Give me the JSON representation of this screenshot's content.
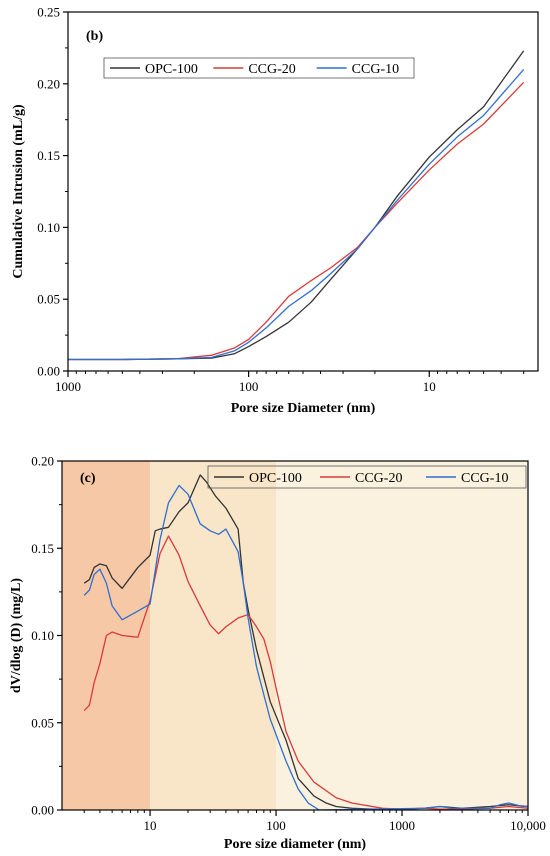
{
  "chart_data": [
    {
      "panel_label": "(b)",
      "type": "line",
      "xlabel": "Pore size Diameter (nm)",
      "ylabel": "Cumulative Intrusion (mL/g)",
      "xscale": "log",
      "xreversed": true,
      "xlim": [
        1000,
        2.5
      ],
      "ylim": [
        0,
        0.25
      ],
      "xticks": [
        {
          "v": 1000,
          "label": "1000"
        },
        {
          "v": 100,
          "label": "100"
        },
        {
          "v": 10,
          "label": "10"
        }
      ],
      "yticks": [
        {
          "v": 0,
          "label": "0.00"
        },
        {
          "v": 0.05,
          "label": "0.05"
        },
        {
          "v": 0.1,
          "label": "0.10"
        },
        {
          "v": 0.15,
          "label": "0.15"
        },
        {
          "v": 0.2,
          "label": "0.20"
        },
        {
          "v": 0.25,
          "label": "0.25"
        }
      ],
      "legend_position": "top-left",
      "legend_layout": "horizontal",
      "series": [
        {
          "name": "OPC-100",
          "color": "#333333",
          "x": [
            1000,
            500,
            250,
            160,
            120,
            100,
            80,
            60,
            45,
            35,
            25,
            20,
            15,
            10,
            7,
            5,
            3
          ],
          "y": [
            0.008,
            0.008,
            0.0085,
            0.009,
            0.012,
            0.017,
            0.024,
            0.034,
            0.048,
            0.064,
            0.085,
            0.1,
            0.122,
            0.149,
            0.168,
            0.184,
            0.223
          ]
        },
        {
          "name": "CCG-20",
          "color": "#d93a3a",
          "x": [
            1000,
            500,
            250,
            160,
            120,
            100,
            80,
            60,
            45,
            35,
            25,
            20,
            15,
            10,
            7,
            5,
            3
          ],
          "y": [
            0.008,
            0.008,
            0.0085,
            0.011,
            0.016,
            0.022,
            0.034,
            0.052,
            0.063,
            0.072,
            0.086,
            0.1,
            0.117,
            0.14,
            0.158,
            0.172,
            0.201
          ]
        },
        {
          "name": "CCG-10",
          "color": "#2f6fd0",
          "x": [
            1000,
            500,
            250,
            160,
            120,
            100,
            80,
            60,
            45,
            35,
            25,
            20,
            15,
            10,
            7,
            5,
            3
          ],
          "y": [
            0.008,
            0.008,
            0.0085,
            0.0095,
            0.014,
            0.02,
            0.03,
            0.045,
            0.056,
            0.068,
            0.085,
            0.1,
            0.119,
            0.144,
            0.163,
            0.178,
            0.21
          ]
        }
      ]
    },
    {
      "panel_label": "(c)",
      "type": "line",
      "xlabel": "Pore size diameter (nm)",
      "ylabel": "dV/dlog (D) (mg/L)",
      "xscale": "log",
      "xreversed": false,
      "xlim": [
        2,
        10000
      ],
      "ylim": [
        0,
        0.2
      ],
      "xticks": [
        {
          "v": 10,
          "label": "10"
        },
        {
          "v": 100,
          "label": "100"
        },
        {
          "v": 1000,
          "label": "1000"
        },
        {
          "v": 10000,
          "label": "10,000"
        }
      ],
      "yticks": [
        {
          "v": 0,
          "label": "0.00"
        },
        {
          "v": 0.05,
          "label": "0.05"
        },
        {
          "v": 0.1,
          "label": "0.10"
        },
        {
          "v": 0.15,
          "label": "0.15"
        },
        {
          "v": 0.2,
          "label": "0.20"
        }
      ],
      "shaded_regions": [
        {
          "from": 2,
          "to": 10,
          "color": "#f7c8a6"
        },
        {
          "from": 10,
          "to": 100,
          "color": "#f9e6c8"
        },
        {
          "from": 100,
          "to": 10000,
          "color": "#fbf1df"
        }
      ],
      "legend_position": "top-right",
      "legend_layout": "horizontal",
      "series": [
        {
          "name": "OPC-100",
          "color": "#333333",
          "x": [
            3,
            3.3,
            3.6,
            4,
            4.5,
            5,
            6,
            8,
            10,
            11,
            12,
            14,
            17,
            20,
            25,
            28,
            33,
            40,
            50,
            55,
            60,
            70,
            90,
            120,
            150,
            200,
            250,
            300,
            400,
            600,
            1000,
            1500,
            2000,
            3000,
            5000,
            7000,
            10000
          ],
          "y": [
            0.13,
            0.132,
            0.139,
            0.141,
            0.14,
            0.133,
            0.127,
            0.139,
            0.146,
            0.16,
            0.161,
            0.162,
            0.171,
            0.176,
            0.192,
            0.188,
            0.18,
            0.173,
            0.161,
            0.13,
            0.115,
            0.092,
            0.062,
            0.04,
            0.018,
            0.008,
            0.004,
            0.002,
            0.001,
            0.0005,
            0.0005,
            0.001,
            0.002,
            0.001,
            0.002,
            0.003,
            0.002
          ]
        },
        {
          "name": "CCG-20",
          "color": "#d93a3a",
          "x": [
            3,
            3.3,
            3.6,
            4,
            4.5,
            5,
            6,
            8,
            10,
            12,
            14,
            17,
            20,
            25,
            30,
            35,
            40,
            50,
            60,
            70,
            80,
            90,
            100,
            120,
            150,
            200,
            300,
            400,
            700,
            1000,
            1500,
            2000,
            3000,
            5000,
            7000,
            10000
          ],
          "y": [
            0.057,
            0.06,
            0.073,
            0.084,
            0.1,
            0.102,
            0.1,
            0.099,
            0.12,
            0.147,
            0.157,
            0.146,
            0.131,
            0.117,
            0.106,
            0.101,
            0.105,
            0.11,
            0.112,
            0.105,
            0.098,
            0.085,
            0.07,
            0.045,
            0.028,
            0.016,
            0.007,
            0.004,
            0.001,
            0.0005,
            0.001,
            0.0005,
            0.0005,
            0.001,
            0.002,
            0.001
          ]
        },
        {
          "name": "CCG-10",
          "color": "#2f6fd0",
          "x": [
            3,
            3.3,
            3.6,
            4,
            4.5,
            5,
            6,
            8,
            10,
            12,
            14,
            17,
            20,
            25,
            30,
            35,
            40,
            50,
            55,
            60,
            70,
            90,
            120,
            150,
            180,
            220,
            1500,
            2000,
            2500,
            5000,
            6000,
            7000,
            8000,
            9000,
            10000
          ],
          "y": [
            0.123,
            0.126,
            0.135,
            0.138,
            0.13,
            0.117,
            0.109,
            0.114,
            0.118,
            0.155,
            0.176,
            0.186,
            0.181,
            0.164,
            0.16,
            0.158,
            0.161,
            0.148,
            0.13,
            0.11,
            0.082,
            0.052,
            0.028,
            0.012,
            0.004,
            0.0,
            0.001,
            0.002,
            0.001,
            0.001,
            0.003,
            0.004,
            0.003,
            0.002,
            0.002
          ]
        }
      ]
    }
  ]
}
